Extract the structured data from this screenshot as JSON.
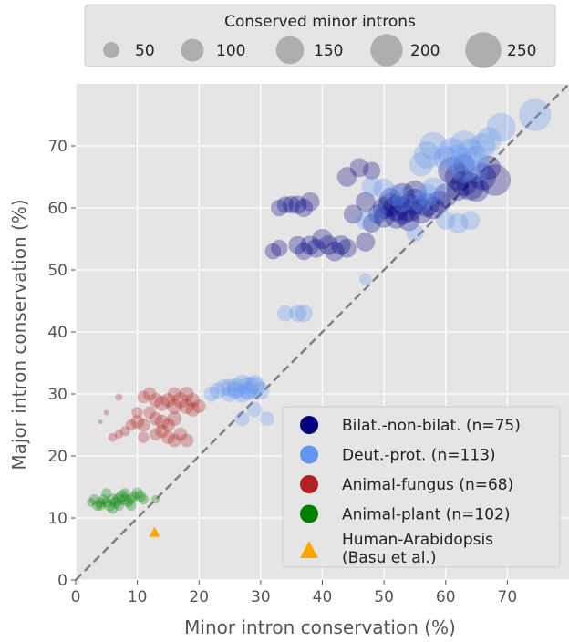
{
  "chart_data": {
    "type": "scatter",
    "xlabel": "Minor intron conservation (%)",
    "ylabel": "Major intron conservation (%)",
    "xlim": [
      0,
      80
    ],
    "ylim": [
      0,
      80
    ],
    "xticks": [
      0,
      10,
      20,
      30,
      40,
      50,
      60,
      70
    ],
    "yticks": [
      0,
      10,
      20,
      30,
      40,
      50,
      60,
      70
    ],
    "grid": true,
    "diagonal_reference_line": "y = x (dashed, gray)",
    "size_legend": {
      "title": "Conserved minor introns",
      "placement": "top-center",
      "values": [
        50,
        100,
        150,
        200,
        250
      ]
    },
    "legend": {
      "placement": "bottom-right"
    },
    "series": [
      {
        "name": "Bilat.-non-bilat. (n=75)",
        "color": "#000080",
        "marker": "circle",
        "points": [
          [
            33,
            60,
            55
          ],
          [
            34,
            60.5,
            55
          ],
          [
            35,
            60.5,
            60
          ],
          [
            36,
            60.5,
            65
          ],
          [
            37,
            60,
            65
          ],
          [
            38,
            61,
            70
          ],
          [
            32,
            53,
            50
          ],
          [
            33,
            53.5,
            55
          ],
          [
            36,
            54,
            65
          ],
          [
            37,
            53,
            60
          ],
          [
            38,
            54,
            70
          ],
          [
            39,
            53.5,
            70
          ],
          [
            40,
            55,
            80
          ],
          [
            41,
            54,
            75
          ],
          [
            42,
            53,
            75
          ],
          [
            43,
            54,
            75
          ],
          [
            44,
            53.5,
            70
          ],
          [
            47,
            54.5,
            70
          ],
          [
            44,
            65,
            75
          ],
          [
            46,
            66.5,
            70
          ],
          [
            48,
            66,
            60
          ],
          [
            45,
            59,
            70
          ],
          [
            47,
            61,
            75
          ],
          [
            48,
            57.5,
            65
          ],
          [
            49,
            59,
            70
          ],
          [
            50,
            60,
            95
          ],
          [
            51,
            60.5,
            110
          ],
          [
            52,
            60,
            130
          ],
          [
            53,
            59.5,
            140
          ],
          [
            54,
            60,
            150
          ],
          [
            55,
            61,
            130
          ],
          [
            56,
            59.5,
            120
          ],
          [
            57,
            60.5,
            110
          ],
          [
            58,
            60,
            100
          ],
          [
            53,
            62,
            120
          ],
          [
            55,
            62.5,
            110
          ],
          [
            52,
            58.5,
            100
          ],
          [
            50,
            58.5,
            85
          ],
          [
            54,
            58,
            90
          ],
          [
            51,
            61.5,
            90
          ],
          [
            59,
            61,
            100
          ],
          [
            60,
            62,
            110
          ],
          [
            61,
            66,
            150
          ],
          [
            62,
            65,
            140
          ],
          [
            63,
            64,
            130
          ],
          [
            64,
            63.5,
            150
          ],
          [
            65,
            63,
            120
          ],
          [
            66,
            65,
            140
          ],
          [
            68,
            64.5,
            190
          ],
          [
            67,
            66.5,
            110
          ],
          [
            62,
            63,
            100
          ],
          [
            63,
            67,
            90
          ]
        ]
      },
      {
        "name": "Deut.-prot. (n=113)",
        "color": "#6495ED",
        "marker": "circle",
        "points": [
          [
            34,
            43,
            50
          ],
          [
            36,
            43,
            55
          ],
          [
            37,
            43,
            60
          ],
          [
            47,
            48.5,
            30
          ],
          [
            22,
            30,
            45
          ],
          [
            23,
            30.5,
            50
          ],
          [
            24,
            31,
            55
          ],
          [
            25,
            31,
            60
          ],
          [
            26,
            31,
            70
          ],
          [
            27,
            31.5,
            80
          ],
          [
            28,
            31,
            90
          ],
          [
            29,
            31,
            85
          ],
          [
            30,
            30.5,
            60
          ],
          [
            25,
            30,
            50
          ],
          [
            27,
            30,
            60
          ],
          [
            28,
            30.5,
            70
          ],
          [
            29,
            31.5,
            75
          ],
          [
            26,
            30.5,
            55
          ],
          [
            27,
            26,
            40
          ],
          [
            29,
            27.5,
            45
          ],
          [
            31,
            26,
            40
          ],
          [
            47,
            58,
            70
          ],
          [
            49,
            59,
            60
          ],
          [
            50,
            63,
            90
          ],
          [
            48,
            63.5,
            80
          ],
          [
            52,
            62,
            90
          ],
          [
            53,
            61,
            80
          ],
          [
            56,
            61,
            90
          ],
          [
            57,
            62,
            100
          ],
          [
            58,
            63,
            110
          ],
          [
            56,
            67,
            110
          ],
          [
            57,
            68.5,
            140
          ],
          [
            58,
            70,
            150
          ],
          [
            60,
            68,
            120
          ],
          [
            61,
            69,
            160
          ],
          [
            62,
            68,
            150
          ],
          [
            63,
            70,
            180
          ],
          [
            64,
            69,
            140
          ],
          [
            65,
            68,
            120
          ],
          [
            66,
            70,
            130
          ],
          [
            67,
            71,
            120
          ],
          [
            65,
            66,
            100
          ],
          [
            63,
            66,
            120
          ],
          [
            55,
            56,
            60
          ],
          [
            60,
            58,
            70
          ],
          [
            62,
            57.5,
            80
          ],
          [
            64,
            58,
            70
          ],
          [
            69,
            73,
            160
          ],
          [
            74.5,
            75,
            200
          ]
        ]
      },
      {
        "name": "Animal-fungus (n=68)",
        "color": "#B22222",
        "marker": "circle",
        "points": [
          [
            4,
            25.5,
            4
          ],
          [
            5,
            27,
            6
          ],
          [
            6,
            23,
            15
          ],
          [
            7,
            23.5,
            15
          ],
          [
            7,
            29.5,
            10
          ],
          [
            8,
            24,
            20
          ],
          [
            9,
            25,
            25
          ],
          [
            10,
            25.5,
            35
          ],
          [
            11,
            25,
            35
          ],
          [
            11,
            29.5,
            30
          ],
          [
            12,
            30,
            35
          ],
          [
            13,
            29,
            40
          ],
          [
            14,
            28.5,
            45
          ],
          [
            15,
            29,
            40
          ],
          [
            16,
            28,
            45
          ],
          [
            17,
            29,
            50
          ],
          [
            18,
            28,
            45
          ],
          [
            19,
            27.5,
            40
          ],
          [
            16,
            30,
            35
          ],
          [
            18,
            30,
            40
          ],
          [
            12,
            27,
            30
          ],
          [
            13,
            26,
            35
          ],
          [
            14,
            25.5,
            40
          ],
          [
            15,
            25,
            35
          ],
          [
            16,
            26,
            40
          ],
          [
            17,
            23.5,
            35
          ],
          [
            18,
            22.5,
            35
          ],
          [
            13,
            23.5,
            30
          ],
          [
            14,
            24,
            35
          ],
          [
            15,
            23,
            35
          ],
          [
            16,
            22.5,
            35
          ],
          [
            19,
            29,
            40
          ],
          [
            20,
            28,
            35
          ],
          [
            11,
            23,
            25
          ],
          [
            10,
            27,
            25
          ]
        ]
      },
      {
        "name": "Animal-plant (n=102)",
        "color": "#008000",
        "marker": "circle",
        "points": [
          [
            2.5,
            12.5,
            15
          ],
          [
            3,
            13,
            20
          ],
          [
            3.5,
            12,
            20
          ],
          [
            4,
            12.5,
            20
          ],
          [
            4.5,
            13,
            20
          ],
          [
            5,
            12.5,
            20
          ],
          [
            5.5,
            12,
            25
          ],
          [
            6,
            13,
            25
          ],
          [
            6.5,
            12.5,
            25
          ],
          [
            7,
            13,
            30
          ],
          [
            7.5,
            13.5,
            30
          ],
          [
            8,
            13,
            25
          ],
          [
            8.5,
            12.5,
            20
          ],
          [
            9,
            13,
            20
          ],
          [
            9.5,
            13.5,
            20
          ],
          [
            10,
            14,
            25
          ],
          [
            10.5,
            13.5,
            25
          ],
          [
            11,
            13,
            20
          ],
          [
            5,
            14,
            20
          ],
          [
            6,
            11.5,
            20
          ],
          [
            7,
            12,
            20
          ],
          [
            8,
            14,
            20
          ],
          [
            9,
            12,
            20
          ],
          [
            4,
            12,
            20
          ],
          [
            13,
            13,
            15
          ]
        ]
      },
      {
        "name": "Human-Arabidopsis\n(Basu et al.)",
        "label_lines": [
          "Human-Arabidopsis",
          "(Basu et al.)"
        ],
        "color": "#FFA500",
        "marker": "triangle",
        "points": [
          [
            12.8,
            7.7,
            null
          ]
        ]
      }
    ]
  }
}
